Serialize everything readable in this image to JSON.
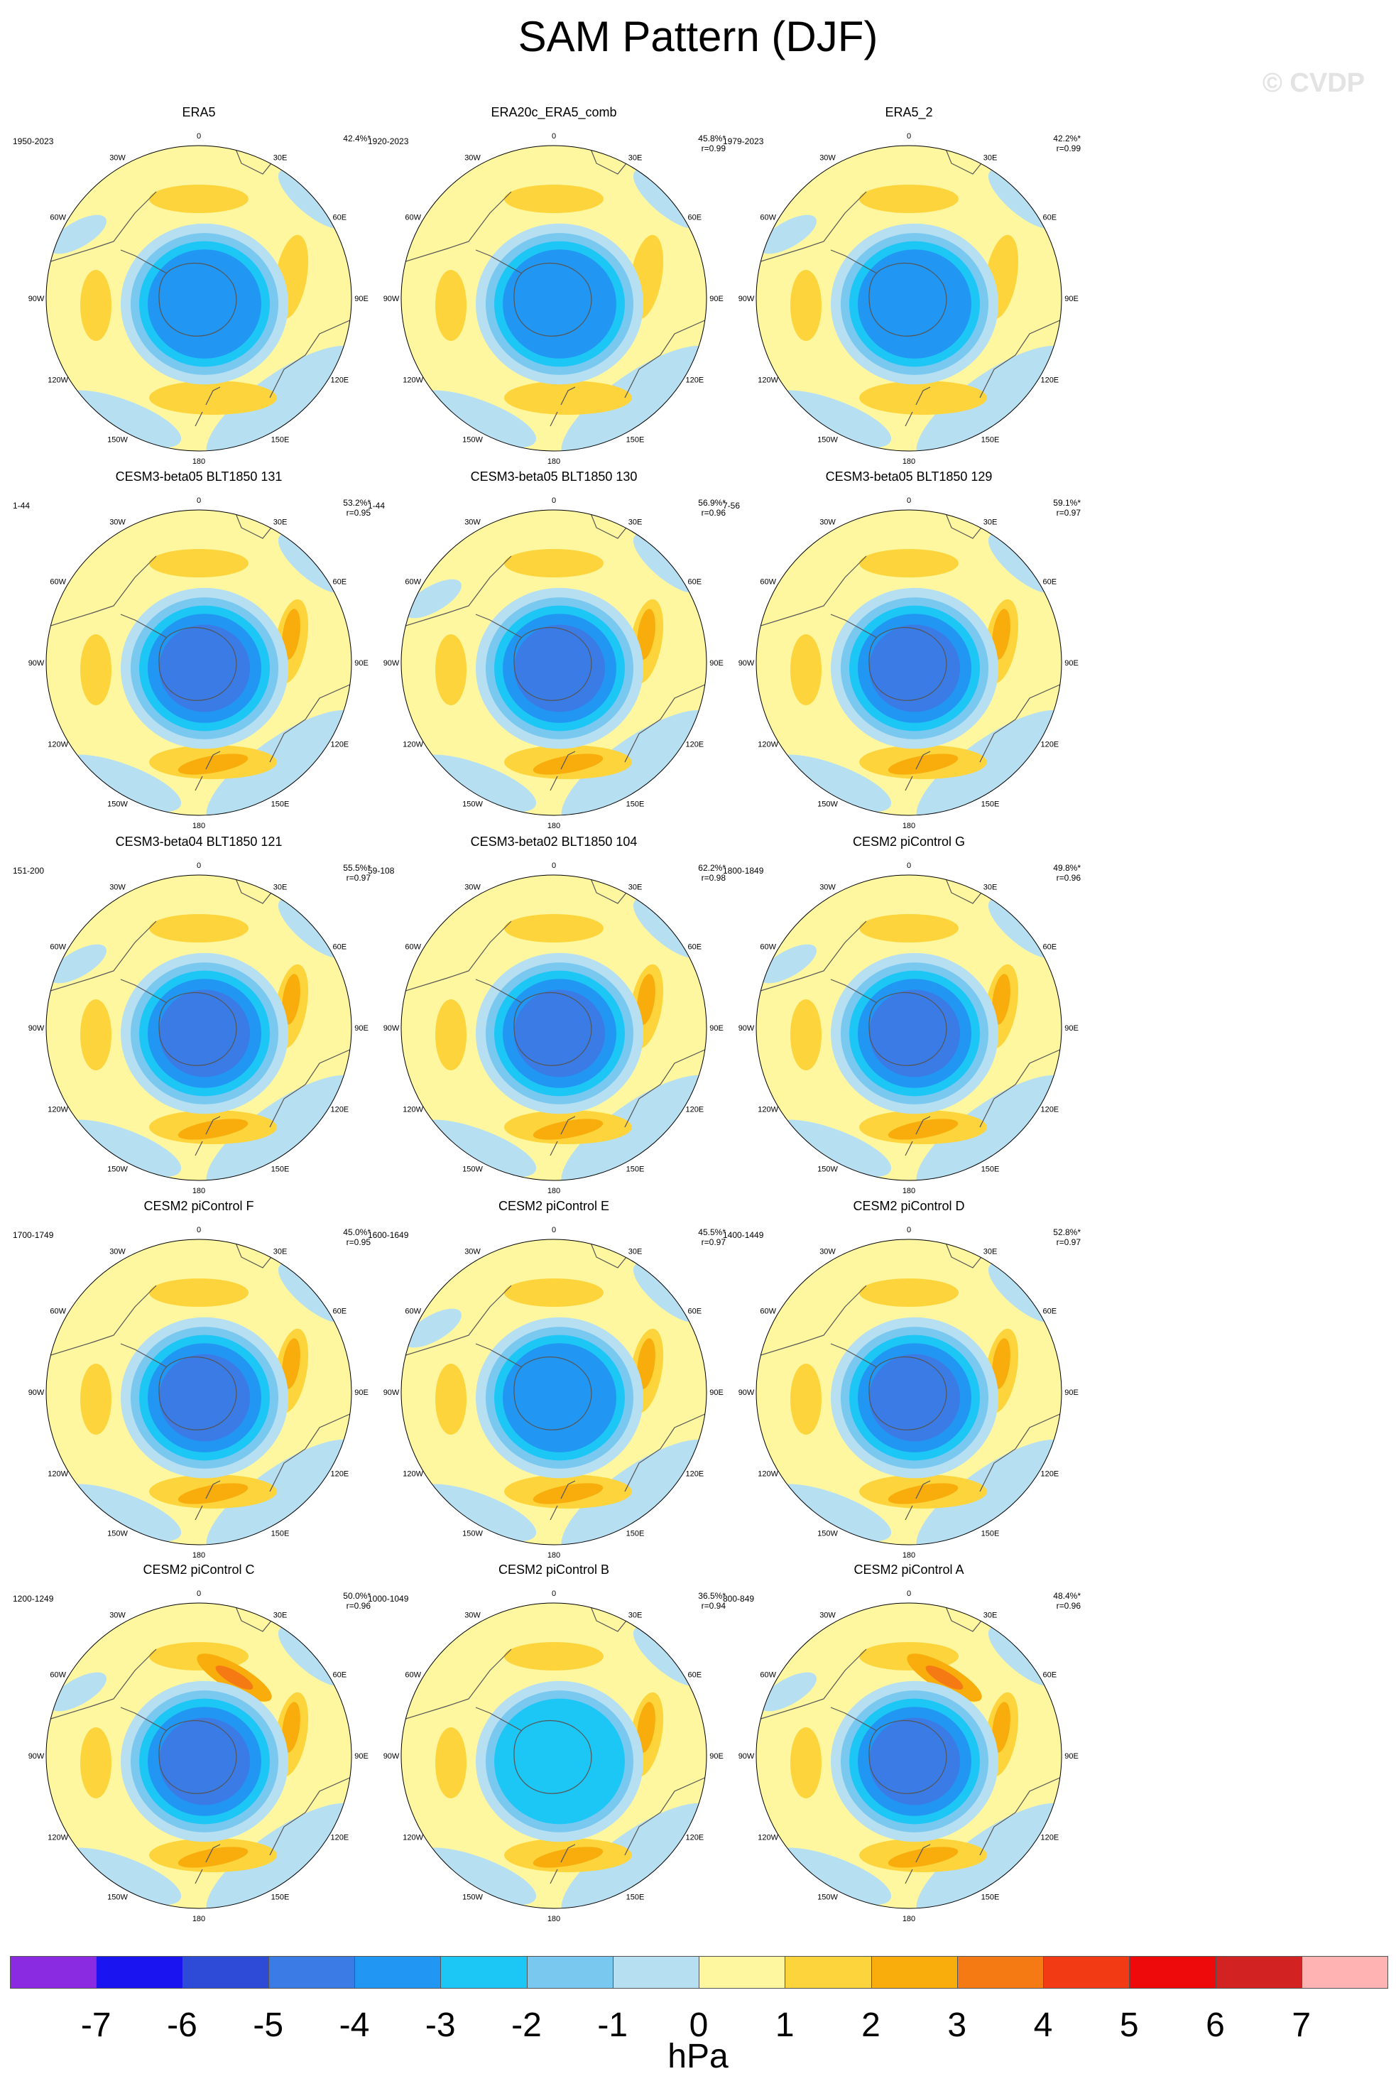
{
  "title": "SAM Pattern (DJF)",
  "watermark": "© CVDP",
  "lon_labels": [
    "0",
    "30E",
    "60E",
    "90E",
    "120E",
    "150E",
    "180",
    "150W",
    "120W",
    "90W",
    "60W",
    "30W"
  ],
  "colors": {
    "level_minus7": "#8a2be2",
    "level_minus6": "#1a14f0",
    "level_minus5": "#2e4bd8",
    "level_minus4": "#3a7be6",
    "level_minus3": "#2196f3",
    "level_minus2": "#1cc6f5",
    "level_minus1": "#78c8f0",
    "level_0": "#b7dff2",
    "level_1": "#fff7a0",
    "level_2": "#fdd43b",
    "level_3": "#f8ad0c",
    "level_4": "#f57a14",
    "level_5": "#f23a14",
    "level_6": "#ee0a0a",
    "level_7": "#d22222",
    "level_8": "#ffb3b3",
    "coastline": "#555555"
  },
  "panels": [
    {
      "title": "ERA5",
      "period": "1950-2023",
      "pct": "42.4%*",
      "corr": "",
      "core": 3
    },
    {
      "title": "ERA20c_ERA5_comb",
      "period": "1920-2023",
      "pct": "45.8%*",
      "corr": "r=0.99",
      "core": 3
    },
    {
      "title": "ERA5_2",
      "period": "1979-2023",
      "pct": "42.2%*",
      "corr": "r=0.99",
      "core": 3
    },
    {
      "title": "CESM3-beta05 BLT1850 131",
      "period": "1-44",
      "pct": "53.2%*",
      "corr": "r=0.95",
      "core": 4
    },
    {
      "title": "CESM3-beta05 BLT1850 130",
      "period": "1-44",
      "pct": "56.9%*",
      "corr": "r=0.96",
      "core": 4
    },
    {
      "title": "CESM3-beta05 BLT1850 129",
      "period": "7-56",
      "pct": "59.1%*",
      "corr": "r=0.97",
      "core": 4
    },
    {
      "title": "CESM3-beta04 BLT1850 121",
      "period": "151-200",
      "pct": "55.5%*",
      "corr": "r=0.97",
      "core": 4
    },
    {
      "title": "CESM3-beta02 BLT1850 104",
      "period": "59-108",
      "pct": "62.2%*",
      "corr": "r=0.98",
      "core": 4
    },
    {
      "title": "CESM2 piControl G",
      "period": "1800-1849",
      "pct": "49.8%*",
      "corr": "r=0.96",
      "core": 4
    },
    {
      "title": "CESM2 piControl F",
      "period": "1700-1749",
      "pct": "45.0%*",
      "corr": "r=0.95",
      "core": 4
    },
    {
      "title": "CESM2 piControl E",
      "period": "1600-1649",
      "pct": "45.5%*",
      "corr": "r=0.97",
      "core": 3
    },
    {
      "title": "CESM2 piControl D",
      "period": "1400-1449",
      "pct": "52.8%*",
      "corr": "r=0.97",
      "core": 4
    },
    {
      "title": "CESM2 piControl C",
      "period": "1200-1249",
      "pct": "50.0%*",
      "corr": "r=0.96",
      "core": 4
    },
    {
      "title": "CESM2 piControl B",
      "period": "1000-1049",
      "pct": "36.5%*",
      "corr": "r=0.94",
      "core": 2
    },
    {
      "title": "CESM2 piControl A",
      "period": "800-849",
      "pct": "48.4%*",
      "corr": "r=0.96",
      "core": 4
    }
  ],
  "colorbar": {
    "ticks": [
      "-7",
      "-6",
      "-5",
      "-4",
      "-3",
      "-2",
      "-1",
      "0",
      "1",
      "2",
      "3",
      "4",
      "5",
      "6",
      "7"
    ],
    "units": "hPa"
  }
}
